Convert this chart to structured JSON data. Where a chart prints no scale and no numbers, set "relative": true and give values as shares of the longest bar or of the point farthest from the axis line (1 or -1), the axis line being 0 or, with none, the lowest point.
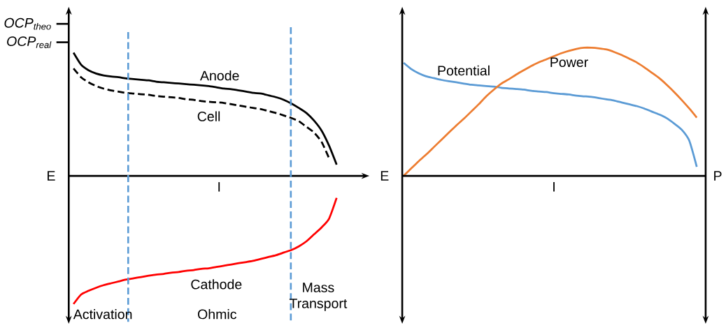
{
  "chart_data": [
    {
      "type": "line",
      "relative": true,
      "xlabel": "I",
      "ylabel": "E",
      "categories": [
        null,
        null,
        null,
        null,
        null,
        null,
        null,
        null,
        null,
        null,
        null,
        null,
        null,
        null,
        null,
        null,
        null,
        null,
        null,
        null,
        null,
        null,
        null,
        null,
        null,
        null,
        null,
        null,
        null,
        null,
        null,
        null,
        null,
        null,
        null,
        null
      ],
      "series": [
        {
          "name": "Anode",
          "color": "#000000",
          "values": [
            0.961,
            0.868,
            0.824,
            0.799,
            0.784,
            0.775,
            0.77,
            0.76,
            0.755,
            0.75,
            0.745,
            0.735,
            0.73,
            0.725,
            0.721,
            0.716,
            0.711,
            0.706,
            0.701,
            0.691,
            0.681,
            0.676,
            0.667,
            0.657,
            0.647,
            0.642,
            0.627,
            0.613,
            0.593,
            0.564,
            0.529,
            0.49,
            0.431,
            0.353,
            0.235,
            0.088
          ]
        },
        {
          "name": "Cell",
          "color": "#000000",
          "line_style": "dashed",
          "values": [
            0.838,
            0.77,
            0.73,
            0.701,
            0.681,
            0.667,
            0.657,
            0.647,
            0.642,
            0.637,
            0.632,
            0.623,
            0.618,
            0.613,
            0.608,
            0.598,
            0.593,
            0.583,
            0.578,
            0.574,
            0.569,
            0.559,
            0.549,
            0.539,
            0.529,
            0.52,
            0.505,
            0.49,
            0.471,
            0.451,
            0.426,
            0.382,
            0.338,
            0.265,
            0.137,
            null
          ]
        },
        {
          "name": "Cathode",
          "color": "#ff0000",
          "values": [
            -1.0,
            -0.926,
            -0.897,
            -0.873,
            -0.853,
            -0.838,
            -0.824,
            -0.809,
            -0.799,
            -0.789,
            -0.779,
            -0.77,
            -0.765,
            -0.755,
            -0.75,
            -0.74,
            -0.735,
            -0.725,
            -0.721,
            -0.711,
            -0.701,
            -0.691,
            -0.681,
            -0.672,
            -0.662,
            -0.647,
            -0.632,
            -0.618,
            -0.598,
            -0.578,
            -0.549,
            -0.51,
            -0.456,
            -0.402,
            -0.333,
            -0.172
          ]
        }
      ],
      "annotations": [
        "OCP$_{theo}$",
        "OCP$_{real}$",
        "Activation",
        "Ohmic",
        "Mass Transport"
      ]
    },
    {
      "type": "line",
      "relative": true,
      "xlabel": "I",
      "ylabel": "E",
      "y2label": "P",
      "categories": [
        null,
        null,
        null,
        null,
        null,
        null,
        null,
        null,
        null,
        null,
        null,
        null,
        null,
        null,
        null,
        null,
        null,
        null,
        null,
        null,
        null,
        null,
        null,
        null,
        null,
        null,
        null,
        null,
        null,
        null,
        null,
        null,
        null,
        null,
        null,
        null,
        null,
        null,
        null,
        null
      ],
      "series": [
        {
          "name": "Potential",
          "color": "#5b9bd5",
          "values": [
            0.882,
            0.834,
            0.801,
            0.777,
            0.763,
            0.749,
            0.739,
            0.73,
            0.72,
            0.711,
            0.706,
            0.701,
            0.697,
            0.687,
            0.682,
            0.678,
            0.673,
            0.664,
            0.659,
            0.654,
            0.645,
            0.64,
            0.635,
            0.626,
            0.621,
            0.616,
            0.607,
            0.597,
            0.588,
            0.573,
            0.559,
            0.545,
            0.526,
            0.502,
            0.479,
            0.45,
            0.408,
            0.36,
            0.275,
            0.071
          ]
        },
        {
          "name": "Power",
          "color": "#ed7d31",
          "values": [
            0,
            0.057,
            0.114,
            0.166,
            0.223,
            0.28,
            0.336,
            0.393,
            0.445,
            0.502,
            0.559,
            0.621,
            0.673,
            0.72,
            0.754,
            0.791,
            0.825,
            0.858,
            0.886,
            0.91,
            0.934,
            0.957,
            0.976,
            0.991,
            1.0,
            1.0,
            0.995,
            0.986,
            0.967,
            0.943,
            0.915,
            0.886,
            0.848,
            0.806,
            0.763,
            0.711,
            0.654,
            0.592,
            0.526,
            0.455
          ]
        }
      ]
    }
  ]
}
